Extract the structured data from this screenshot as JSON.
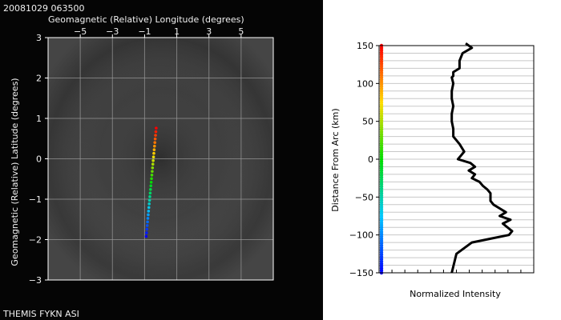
{
  "timestamp": "20081029 063500",
  "footer": "THEMIS FYKN ASI",
  "chart_data": [
    {
      "type": "scatter",
      "title": "",
      "xlabel": "Geomagnetic (Relative) Longitude (degrees)",
      "ylabel": "Geomagnetic (Relative) Latitude (degrees)",
      "xlim": [
        -7,
        7
      ],
      "ylim": [
        -3,
        3
      ],
      "xticks": [
        -5,
        -3,
        -1,
        1,
        3,
        5
      ],
      "yticks": [
        -3,
        -2,
        -1,
        0,
        1,
        2,
        3
      ],
      "xtick_labels": [
        "−5",
        "−3",
        "−1",
        "1",
        "3",
        "5"
      ],
      "ytick_labels": [
        "−3",
        "−2",
        "−1",
        "0",
        "1",
        "2",
        "3"
      ],
      "grid": true,
      "series": [
        {
          "x": [
            -0.9,
            -0.28
          ],
          "y": [
            -1.92,
            0.76
          ],
          "color_scale": "rainbow: blue at bottom, red at top"
        }
      ]
    },
    {
      "type": "line",
      "title": "",
      "xlabel": "Normalized Intensity",
      "ylabel": "Distance From Arc (km)",
      "ylim": [
        -150,
        150
      ],
      "yticks": [
        -150,
        -100,
        -50,
        0,
        50,
        100,
        150
      ],
      "ytick_labels": [
        "−150",
        "−100",
        "−50",
        "0",
        "50",
        "100",
        "150"
      ],
      "grid": true,
      "series": [
        {
          "intensity": [
            0.56,
            0.6,
            0.54,
            0.52,
            0.52,
            0.48,
            0.48,
            0.47,
            0.48,
            0.47,
            0.47,
            0.48,
            0.47,
            0.47,
            0.48,
            0.48,
            0.52,
            0.55,
            0.53,
            0.51,
            0.59,
            0.62,
            0.58,
            0.62,
            0.6,
            0.65,
            0.67,
            0.7,
            0.72,
            0.72,
            0.72,
            0.74,
            0.78,
            0.82,
            0.78,
            0.85,
            0.8,
            0.86,
            0.84,
            0.72,
            0.6,
            0.5,
            0.47
          ],
          "distance": [
            153,
            147,
            140,
            130,
            120,
            115,
            110,
            108,
            100,
            90,
            80,
            70,
            60,
            50,
            40,
            30,
            20,
            10,
            5,
            0,
            -5,
            -10,
            -15,
            -20,
            -25,
            -30,
            -35,
            -40,
            -45,
            -50,
            -55,
            -60,
            -65,
            -70,
            -75,
            -80,
            -85,
            -95,
            -100,
            -105,
            -110,
            -125,
            -150
          ]
        }
      ],
      "color_bar": "rainbow along the distance axis: red at top (+150) to blue at bottom (-150)"
    }
  ]
}
